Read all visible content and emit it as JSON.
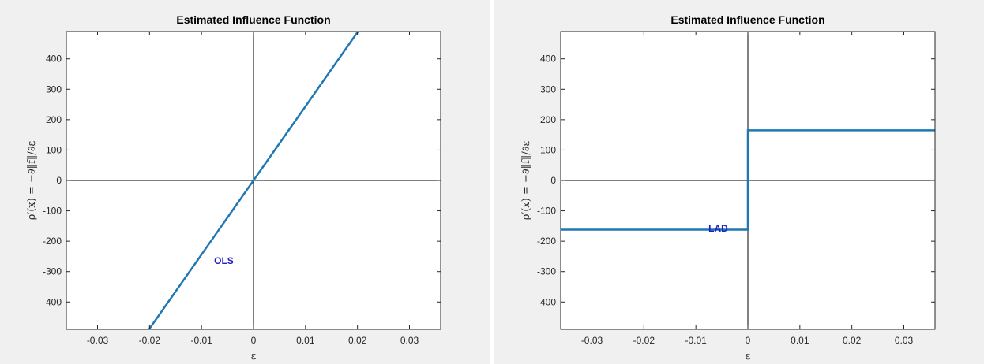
{
  "colors": {
    "line": "#1f77b4",
    "annotation": "#2020c0",
    "figure_bg": "#f0f0f0"
  },
  "chart_data": [
    {
      "type": "line",
      "title": "Estimated Influence Function",
      "xlabel": "ε",
      "ylabel": "ρ′(x) = −∂‖f‖/∂ε",
      "xlim": [
        -0.036,
        0.036
      ],
      "ylim": [
        -490,
        490
      ],
      "xticks": [
        -0.03,
        -0.02,
        -0.01,
        0,
        0.01,
        0.02,
        0.03
      ],
      "xtick_labels": [
        "-0.03",
        "-0.02",
        "-0.01",
        "0",
        "0.01",
        "0.02",
        "0.03"
      ],
      "yticks": [
        400,
        300,
        200,
        100,
        0,
        -100,
        -200,
        -300,
        -400
      ],
      "ytick_labels": [
        "400",
        "300",
        "200",
        "100",
        "0",
        "-100",
        "-200",
        "-300",
        "-400"
      ],
      "grid": false,
      "zero_lines": true,
      "series": [
        {
          "x": [
            -0.0205,
            0.0205
          ],
          "y": [
            -500,
            500
          ]
        }
      ],
      "annotations": [
        {
          "text": "OLS",
          "x": -0.0057,
          "y": -275
        }
      ]
    },
    {
      "type": "line",
      "title": "Estimated Influence Function",
      "xlabel": "ε",
      "ylabel": "ρ′(x) = −∂‖f‖/∂ε",
      "xlim": [
        -0.036,
        0.036
      ],
      "ylim": [
        -490,
        490
      ],
      "xticks": [
        -0.03,
        -0.02,
        -0.01,
        0,
        0.01,
        0.02,
        0.03
      ],
      "xtick_labels": [
        "-0.03",
        "-0.02",
        "-0.01",
        "0",
        "0.01",
        "0.02",
        "0.03"
      ],
      "yticks": [
        400,
        300,
        200,
        100,
        0,
        -100,
        -200,
        -300,
        -400
      ],
      "ytick_labels": [
        "400",
        "300",
        "200",
        "100",
        "0",
        "-100",
        "-200",
        "-300",
        "-400"
      ],
      "grid": false,
      "zero_lines": true,
      "series": [
        {
          "x": [
            -0.036,
            0,
            0,
            0.036
          ],
          "y": [
            -162,
            -162,
            165,
            165
          ]
        }
      ],
      "annotations": [
        {
          "text": "LAD",
          "x": -0.0057,
          "y": -168
        }
      ]
    }
  ]
}
